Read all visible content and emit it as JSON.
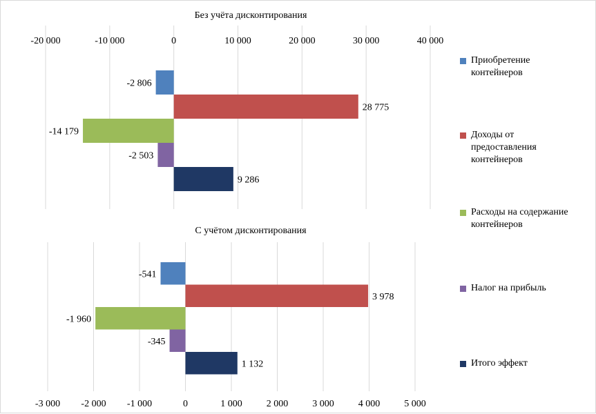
{
  "chart_data": [
    {
      "type": "bar",
      "orientation": "horizontal",
      "title": "Без учёта дисконтирования",
      "categories": [
        "Приобретение контейнеров",
        "Доходы от предоставления контейнеров",
        "Расходы на содержание контейнеров",
        "Налог на прибыль",
        "Итого эффект"
      ],
      "values": [
        -2806,
        28775,
        -14179,
        -2503,
        9286
      ],
      "value_labels": [
        "-2 806",
        "28 775",
        "-14 179",
        "-2 503",
        "9 286"
      ],
      "xlim": [
        -20000,
        40000
      ],
      "tick_values": [
        -20000,
        -10000,
        0,
        10000,
        20000,
        30000,
        40000
      ],
      "tick_labels": [
        "-20 000",
        "-10 000",
        "0",
        "10 000",
        "20 000",
        "30 000",
        "40 000"
      ],
      "axis_position": "top",
      "grid": true
    },
    {
      "type": "bar",
      "orientation": "horizontal",
      "title": "С учётом дисконтирования",
      "categories": [
        "Приобретение контейнеров",
        "Доходы от предоставления контейнеров",
        "Расходы на содержание контейнеров",
        "Налог на прибыль",
        "Итого эффект"
      ],
      "values": [
        -541,
        3978,
        -1960,
        -345,
        1132
      ],
      "value_labels": [
        "-541",
        "3 978",
        "-1 960",
        "-345",
        "1 132"
      ],
      "xlim": [
        -3000,
        5000
      ],
      "tick_values": [
        -3000,
        -2000,
        -1000,
        0,
        1000,
        2000,
        3000,
        4000,
        5000
      ],
      "tick_labels": [
        "-3 000",
        "-2 000",
        "-1 000",
        "0",
        "1 000",
        "2 000",
        "3 000",
        "4 000",
        "5 000"
      ],
      "axis_position": "bottom",
      "grid": true
    }
  ],
  "legend": {
    "placement": "right",
    "items": [
      {
        "label": "Приобретение\nконтейнеров",
        "color": "#4f81bd"
      },
      {
        "label": "Доходы от\nпредоставления\nконтейнеров",
        "color": "#c0504d"
      },
      {
        "label": "Расходы на содержание\nконтейнеров",
        "color": "#9bbb59"
      },
      {
        "label": "Налог на прибыль",
        "color": "#8064a2"
      },
      {
        "label": "Итого эффект",
        "color": "#1f3864"
      }
    ]
  }
}
